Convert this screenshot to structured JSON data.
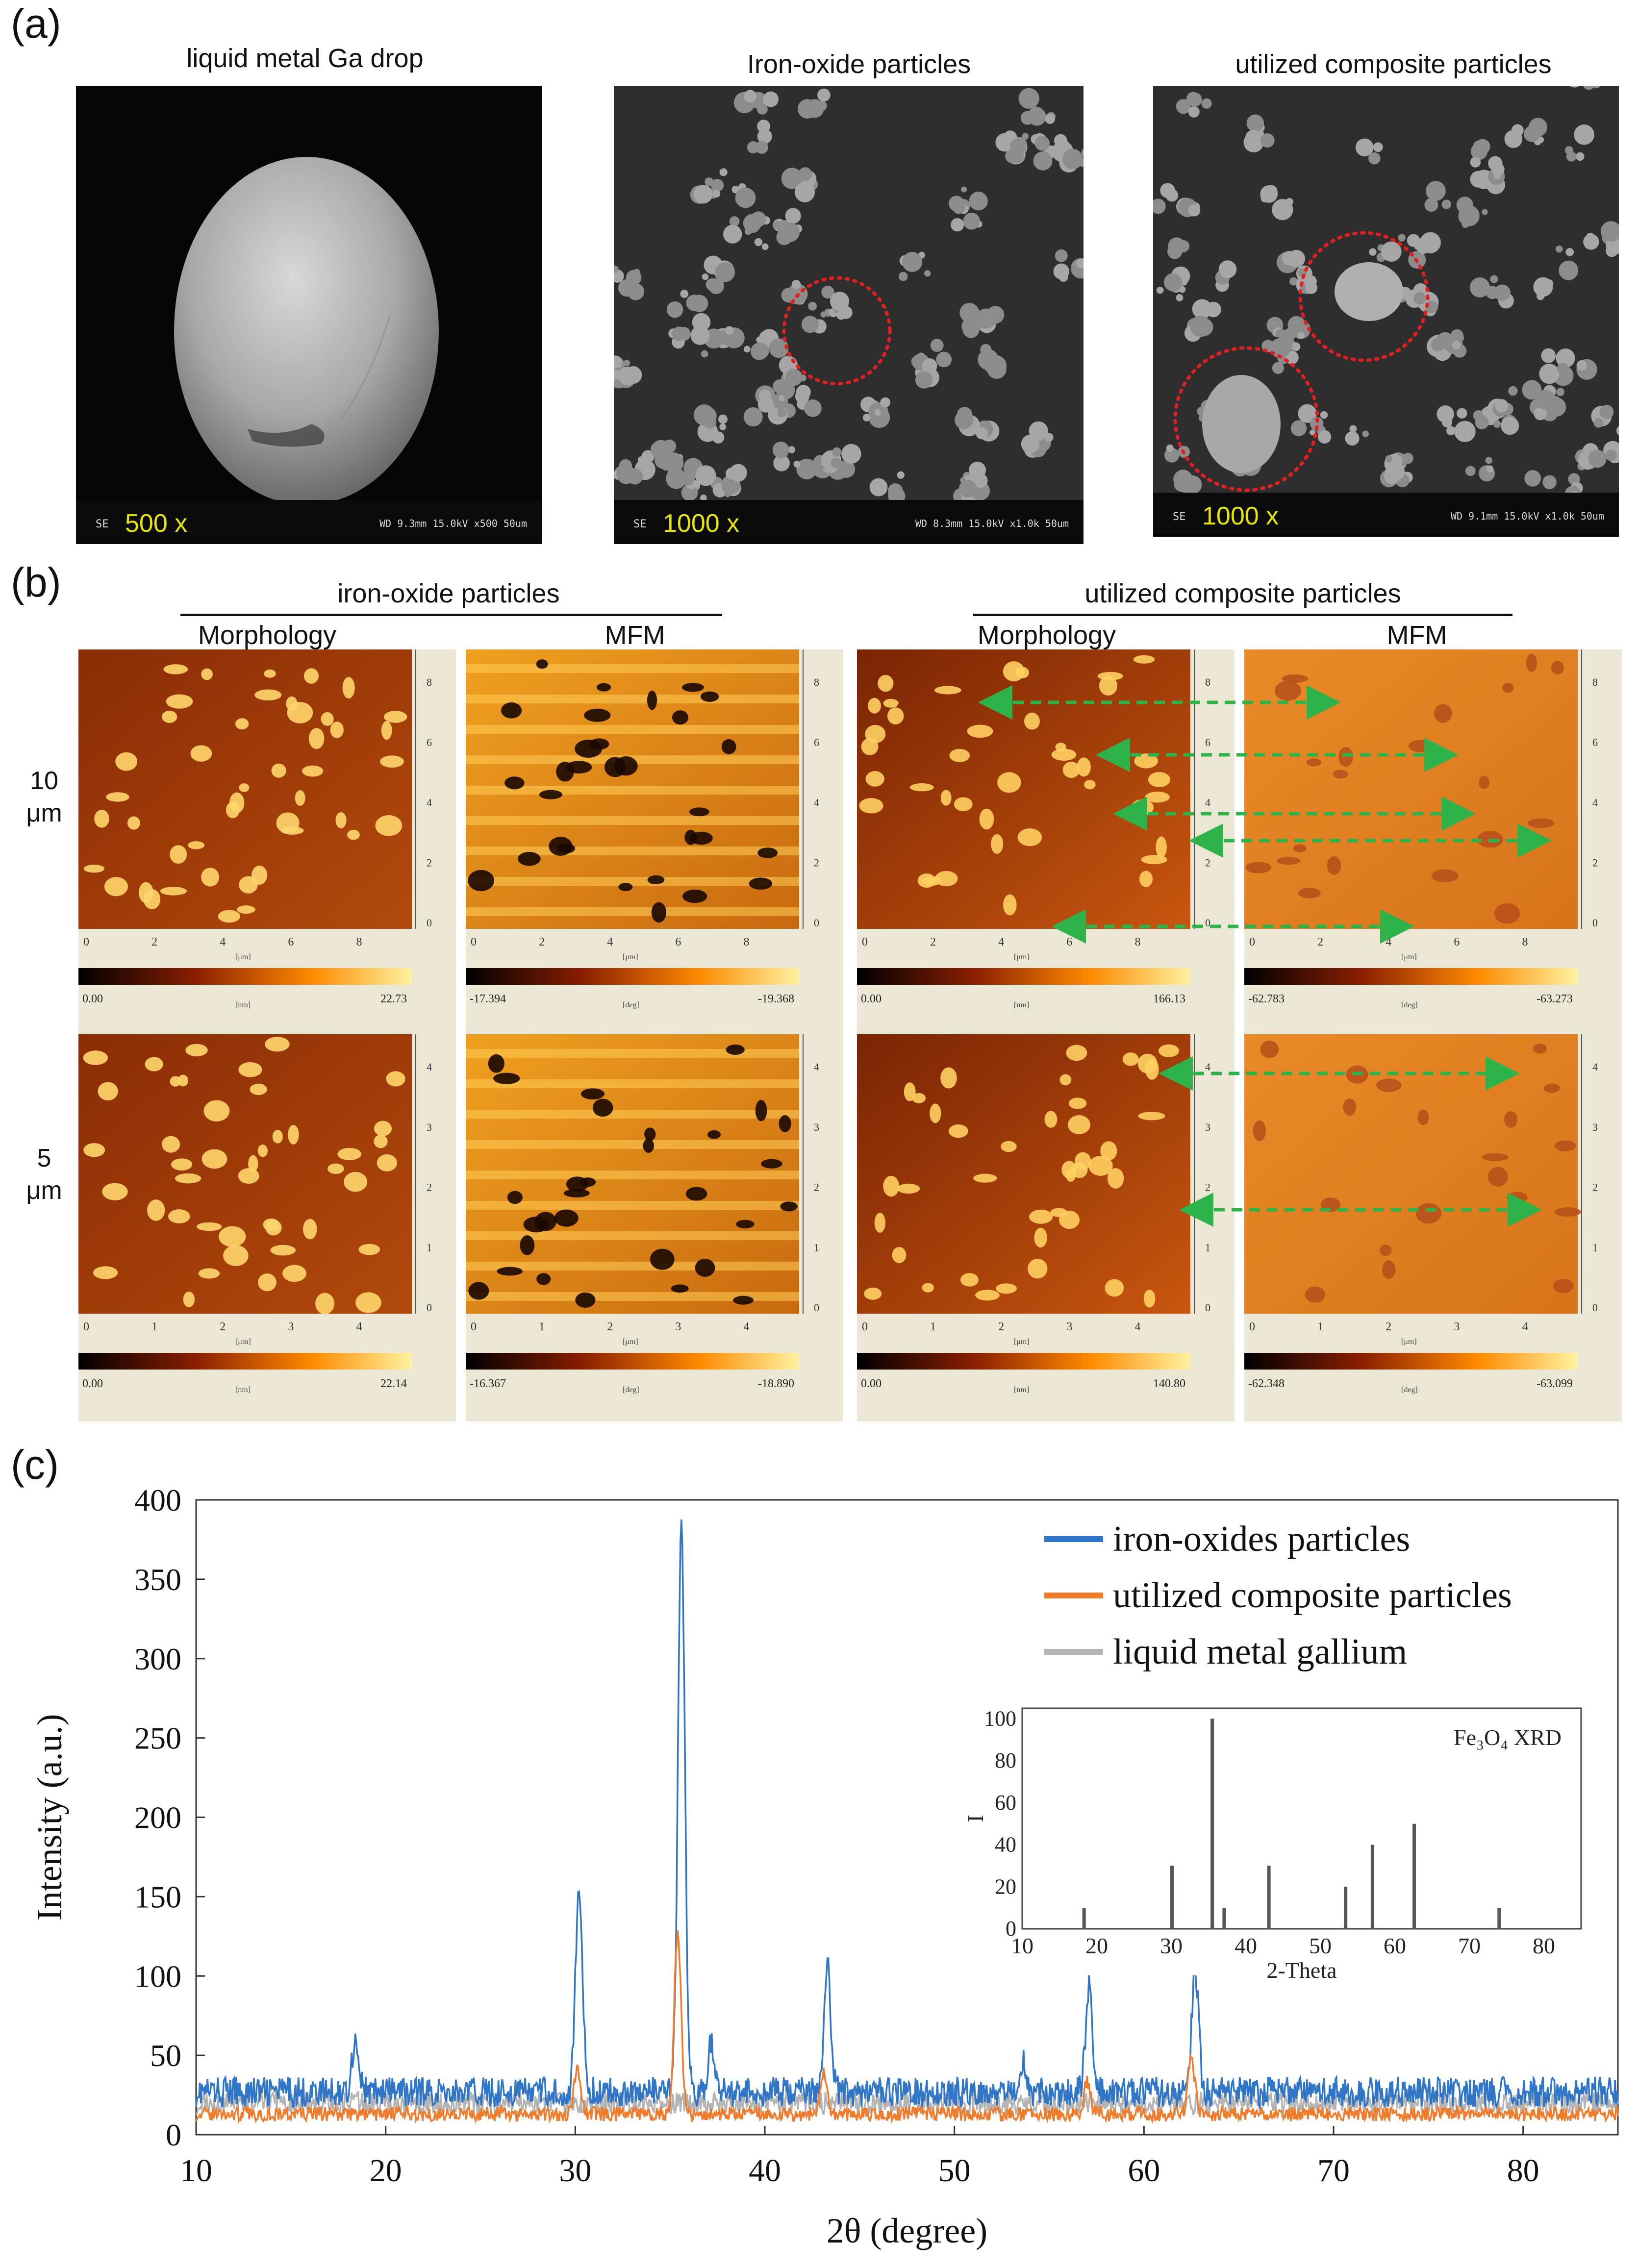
{
  "panel_labels": {
    "a": "(a)",
    "b": "(b)",
    "c": "c)"
  },
  "sem": {
    "panels": [
      {
        "title": "liquid metal Ga drop",
        "mag": "500 x",
        "se": "SE",
        "info": "WD 9.3mm 15.0kV x500   50um"
      },
      {
        "title": "Iron-oxide particles",
        "mag": "1000 x",
        "se": "SE",
        "info": "WD 8.3mm 15.0kV x1.0k  50um"
      },
      {
        "title": "utilized composite particles",
        "mag": "1000 x",
        "se": "SE",
        "info": "WD 9.1mm 15.0kV x1.0k  50um"
      }
    ]
  },
  "afm": {
    "group_left": "iron-oxide particles",
    "group_right": "utilized composite particles",
    "col_labels": [
      "Morphology",
      "MFM",
      "Morphology",
      "MFM"
    ],
    "row_labels": [
      [
        "10",
        "μm"
      ],
      [
        "5",
        "μm"
      ]
    ],
    "axis_unit": "[μm]",
    "rows": [
      {
        "ticks": [
          "0",
          "2",
          "4",
          "6",
          "8"
        ],
        "panels": [
          {
            "cb_min": "0.00",
            "cb_max": "22.73",
            "cb_unit": "[nm]"
          },
          {
            "cb_min": "-17.394",
            "cb_max": "-19.368",
            "cb_unit": "[deg]"
          },
          {
            "cb_min": "0.00",
            "cb_max": "166.13",
            "cb_unit": "[nm]"
          },
          {
            "cb_min": "-62.783",
            "cb_max": "-63.273",
            "cb_unit": "[deg]"
          }
        ]
      },
      {
        "ticks": [
          "0",
          "1",
          "2",
          "3",
          "4"
        ],
        "panels": [
          {
            "cb_min": "0.00",
            "cb_max": "22.14",
            "cb_unit": "[nm]"
          },
          {
            "cb_min": "-16.367",
            "cb_max": "-18.890",
            "cb_unit": "[deg]"
          },
          {
            "cb_min": "0.00",
            "cb_max": "140.80",
            "cb_unit": "[nm]"
          },
          {
            "cb_min": "-62.348",
            "cb_max": "-63.099",
            "cb_unit": "[deg]"
          }
        ]
      }
    ]
  },
  "chart_data": [
    {
      "type": "line",
      "xlabel": "2θ (degree)",
      "ylabel": "Intensity (a.u.)",
      "xlim": [
        10,
        85
      ],
      "ylim": [
        0,
        400
      ],
      "xticks": [
        10,
        20,
        30,
        40,
        50,
        60,
        70,
        80
      ],
      "yticks": [
        0,
        50,
        100,
        150,
        200,
        250,
        300,
        350,
        400
      ],
      "legend_position": "top-right",
      "series": [
        {
          "name": "iron-oxides particles",
          "color": "#2f75c8",
          "baseline": 27,
          "peaks": [
            [
              18.4,
              60
            ],
            [
              30.2,
              155
            ],
            [
              35.6,
              380
            ],
            [
              37.2,
              58
            ],
            [
              43.3,
              106
            ],
            [
              53.6,
              48
            ],
            [
              57.1,
              92
            ],
            [
              62.7,
              105
            ]
          ]
        },
        {
          "name": "utilized composite particles",
          "color": "#f07c2b",
          "baseline": 13,
          "peaks": [
            [
              30.1,
              40
            ],
            [
              35.4,
              128
            ],
            [
              43.1,
              40
            ],
            [
              57.0,
              33
            ],
            [
              62.5,
              48
            ]
          ]
        },
        {
          "name": "liquid metal gallium",
          "color": "#b4b4b4",
          "baseline": 20,
          "peaks": []
        }
      ]
    },
    {
      "type": "bar",
      "title": "Fe₃O₄ XRD",
      "xlabel": "2-Theta",
      "ylabel": "I",
      "xlim": [
        10,
        85
      ],
      "ylim": [
        0,
        105
      ],
      "xticks": [
        10,
        20,
        30,
        40,
        50,
        60,
        70,
        80
      ],
      "yticks": [
        0,
        20,
        40,
        60,
        80,
        100
      ],
      "x": [
        18.3,
        30.1,
        35.5,
        37.1,
        43.1,
        53.4,
        57.0,
        62.6,
        74.0
      ],
      "values": [
        10,
        30,
        100,
        10,
        30,
        20,
        40,
        50,
        10
      ]
    }
  ]
}
